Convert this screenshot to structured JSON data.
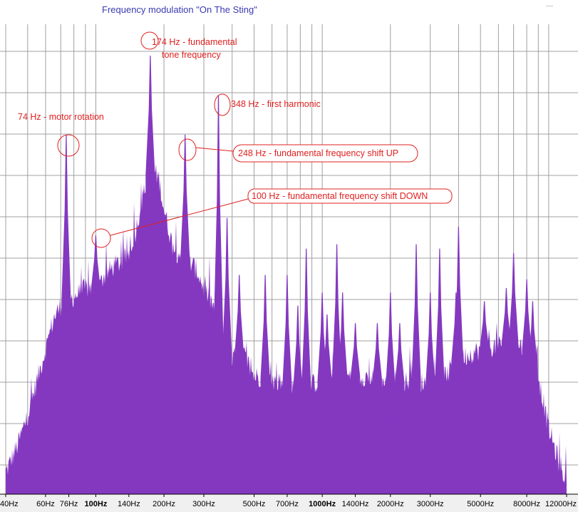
{
  "window": {
    "title": "Frequency modulation \"On The Sting\""
  },
  "colors": {
    "spectrum_fill": "#8438c0",
    "grid": "#a0a0a0",
    "plot_background": "#ffffff",
    "annotation": "#e02020",
    "title": "#3a3ab4"
  },
  "chart_data": {
    "type": "area",
    "title": "Frequency modulation \"On The Sting\"",
    "xscale": "log",
    "xlim": [
      40,
      12000
    ],
    "ylim": [
      0,
      1
    ],
    "grid": true,
    "x_ticks": [
      {
        "value": 40,
        "label": "40Hz",
        "major": false
      },
      {
        "value": 60,
        "label": "60Hz",
        "major": false
      },
      {
        "value": 76,
        "label": "76Hz",
        "major": false
      },
      {
        "value": 100,
        "label": "100Hz",
        "major": true
      },
      {
        "value": 140,
        "label": "140Hz",
        "major": false
      },
      {
        "value": 200,
        "label": "200Hz",
        "major": false
      },
      {
        "value": 300,
        "label": "300Hz",
        "major": false
      },
      {
        "value": 500,
        "label": "500Hz",
        "major": false
      },
      {
        "value": 700,
        "label": "700Hz",
        "major": false
      },
      {
        "value": 1000,
        "label": "1000Hz",
        "major": true
      },
      {
        "value": 1400,
        "label": "1400Hz",
        "major": false
      },
      {
        "value": 2000,
        "label": "2000Hz",
        "major": false
      },
      {
        "value": 3000,
        "label": "3000Hz",
        "major": false
      },
      {
        "value": 5000,
        "label": "5000Hz",
        "major": false
      },
      {
        "value": 8000,
        "label": "8000Hz",
        "major": false
      },
      {
        "value": 12000,
        "label": "12000Hz",
        "major": false
      }
    ],
    "envelope": {
      "x": [
        40,
        45,
        50,
        55,
        60,
        65,
        70,
        80,
        90,
        100,
        110,
        120,
        130,
        140,
        150,
        160,
        170,
        180,
        190,
        200,
        220,
        240,
        260,
        280,
        300,
        330,
        360,
        400,
        450,
        500,
        600,
        700,
        800,
        1000,
        1200,
        1500,
        1800,
        2000,
        2500,
        3000,
        3500,
        4000,
        5000,
        6000,
        7000,
        8000,
        9000,
        10000,
        11000,
        12000
      ],
      "y": [
        0.05,
        0.11,
        0.18,
        0.26,
        0.33,
        0.4,
        0.43,
        0.45,
        0.47,
        0.47,
        0.5,
        0.52,
        0.53,
        0.55,
        0.6,
        0.67,
        0.72,
        0.74,
        0.72,
        0.65,
        0.56,
        0.54,
        0.53,
        0.51,
        0.47,
        0.43,
        0.34,
        0.31,
        0.32,
        0.27,
        0.26,
        0.25,
        0.24,
        0.26,
        0.27,
        0.27,
        0.26,
        0.25,
        0.26,
        0.25,
        0.27,
        0.31,
        0.33,
        0.34,
        0.35,
        0.33,
        0.27,
        0.15,
        0.08,
        0.03
      ]
    },
    "peaks": [
      {
        "x": 74,
        "y": 0.82
      },
      {
        "x": 100,
        "y": 0.59
      },
      {
        "x": 174,
        "y": 1.0
      },
      {
        "x": 248,
        "y": 0.82
      },
      {
        "x": 348,
        "y": 0.91
      },
      {
        "x": 380,
        "y": 0.63
      },
      {
        "x": 430,
        "y": 0.5
      },
      {
        "x": 560,
        "y": 0.5
      },
      {
        "x": 700,
        "y": 0.5
      },
      {
        "x": 780,
        "y": 0.43
      },
      {
        "x": 850,
        "y": 0.56
      },
      {
        "x": 1000,
        "y": 0.46
      },
      {
        "x": 1050,
        "y": 0.41
      },
      {
        "x": 1160,
        "y": 0.57
      },
      {
        "x": 1230,
        "y": 0.46
      },
      {
        "x": 1400,
        "y": 0.39
      },
      {
        "x": 1750,
        "y": 0.39
      },
      {
        "x": 2000,
        "y": 0.46
      },
      {
        "x": 2200,
        "y": 0.39
      },
      {
        "x": 2600,
        "y": 0.57
      },
      {
        "x": 3000,
        "y": 0.46
      },
      {
        "x": 3300,
        "y": 0.56
      },
      {
        "x": 3900,
        "y": 0.46
      },
      {
        "x": 4000,
        "y": 0.61
      },
      {
        "x": 5200,
        "y": 0.44
      },
      {
        "x": 6500,
        "y": 0.47
      },
      {
        "x": 7000,
        "y": 0.55
      },
      {
        "x": 8000,
        "y": 0.49
      },
      {
        "x": 8500,
        "y": 0.44
      }
    ],
    "annotations": [
      {
        "text": "74 Hz - motor rotation",
        "x": 74,
        "y": 0.82
      },
      {
        "text": "100 Hz - fundamental frequency shift DOWN",
        "x": 100,
        "y": 0.59
      },
      {
        "text": "174 Hz - fundamental",
        "text2": "tone frequency",
        "x": 174,
        "y": 1.0
      },
      {
        "text": "248 Hz - fundamental frequency shift UP",
        "x": 248,
        "y": 0.82
      },
      {
        "text": "348 Hz - first harmonic",
        "x": 348,
        "y": 0.91
      }
    ]
  }
}
